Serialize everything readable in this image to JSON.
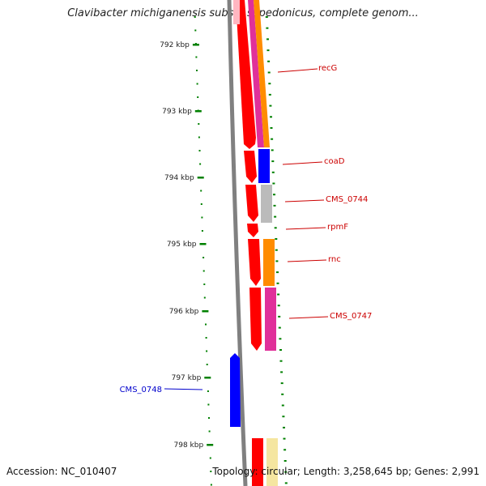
{
  "title": "Clavibacter michiganensis subsp. sepedonicus, complete genom...",
  "footer": {
    "accession": "Accession: NC_010407",
    "summary": "Topology: circular; Length: 3,258,645 bp; Genes: 2,991"
  },
  "ruler": {
    "unit": "kbp",
    "ticks": [
      "792 kbp",
      "793 kbp",
      "794 kbp",
      "795 kbp",
      "796 kbp",
      "797 kbp",
      "798 kbp"
    ],
    "color": "#008000"
  },
  "genes": [
    {
      "label": "recG",
      "color": "#cc0000",
      "strand": "forward"
    },
    {
      "label": "coaD",
      "color": "#cc0000",
      "strand": "forward"
    },
    {
      "label": "CMS_0744",
      "color": "#cc0000",
      "strand": "forward"
    },
    {
      "label": "rpmF",
      "color": "#cc0000",
      "strand": "forward"
    },
    {
      "label": "rnc",
      "color": "#cc0000",
      "strand": "forward"
    },
    {
      "label": "CMS_0747",
      "color": "#cc0000",
      "strand": "forward"
    },
    {
      "label": "CMS_0748",
      "color": "#0000cc",
      "strand": "reverse"
    }
  ],
  "colors": {
    "forward_gene": "#ff0000",
    "reverse_gene": "#0000ff",
    "backbone": "#808080",
    "cog_orange": "#ff8c00",
    "cog_magenta": "#e0309a",
    "cog_blue": "#0000ff",
    "cog_gray": "#bbbbbb",
    "cog_pink": "#ffb6c1",
    "cog_yellow": "#f5e6a0"
  }
}
